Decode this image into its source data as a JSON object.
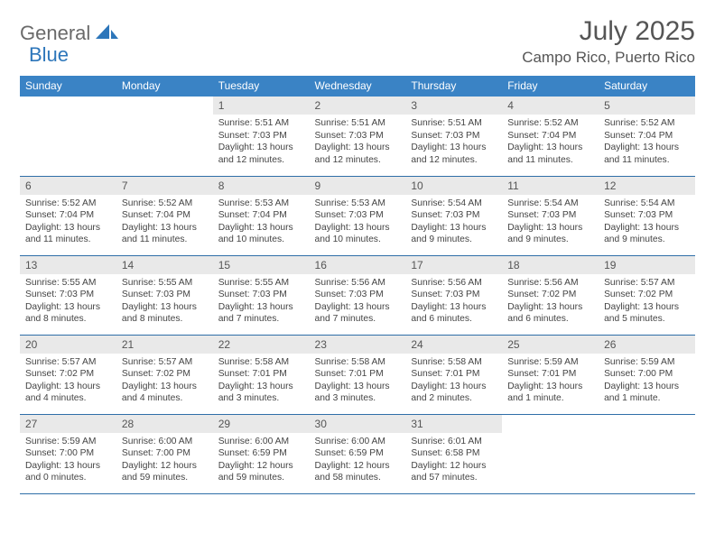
{
  "brand": {
    "part1": "General",
    "part2": "Blue"
  },
  "title": "July 2025",
  "location": "Campo Rico, Puerto Rico",
  "colors": {
    "header_bg": "#3a83c5",
    "header_text": "#ffffff",
    "daynum_bg": "#e9e9e9",
    "rule": "#2f6fa8",
    "brand_gray": "#6a6a6a",
    "brand_blue": "#2d76ba"
  },
  "weekdays": [
    "Sunday",
    "Monday",
    "Tuesday",
    "Wednesday",
    "Thursday",
    "Friday",
    "Saturday"
  ],
  "weeks": [
    [
      null,
      null,
      {
        "n": "1",
        "sr": "5:51 AM",
        "ss": "7:03 PM",
        "dl": "13 hours and 12 minutes."
      },
      {
        "n": "2",
        "sr": "5:51 AM",
        "ss": "7:03 PM",
        "dl": "13 hours and 12 minutes."
      },
      {
        "n": "3",
        "sr": "5:51 AM",
        "ss": "7:03 PM",
        "dl": "13 hours and 12 minutes."
      },
      {
        "n": "4",
        "sr": "5:52 AM",
        "ss": "7:04 PM",
        "dl": "13 hours and 11 minutes."
      },
      {
        "n": "5",
        "sr": "5:52 AM",
        "ss": "7:04 PM",
        "dl": "13 hours and 11 minutes."
      }
    ],
    [
      {
        "n": "6",
        "sr": "5:52 AM",
        "ss": "7:04 PM",
        "dl": "13 hours and 11 minutes."
      },
      {
        "n": "7",
        "sr": "5:52 AM",
        "ss": "7:04 PM",
        "dl": "13 hours and 11 minutes."
      },
      {
        "n": "8",
        "sr": "5:53 AM",
        "ss": "7:04 PM",
        "dl": "13 hours and 10 minutes."
      },
      {
        "n": "9",
        "sr": "5:53 AM",
        "ss": "7:03 PM",
        "dl": "13 hours and 10 minutes."
      },
      {
        "n": "10",
        "sr": "5:54 AM",
        "ss": "7:03 PM",
        "dl": "13 hours and 9 minutes."
      },
      {
        "n": "11",
        "sr": "5:54 AM",
        "ss": "7:03 PM",
        "dl": "13 hours and 9 minutes."
      },
      {
        "n": "12",
        "sr": "5:54 AM",
        "ss": "7:03 PM",
        "dl": "13 hours and 9 minutes."
      }
    ],
    [
      {
        "n": "13",
        "sr": "5:55 AM",
        "ss": "7:03 PM",
        "dl": "13 hours and 8 minutes."
      },
      {
        "n": "14",
        "sr": "5:55 AM",
        "ss": "7:03 PM",
        "dl": "13 hours and 8 minutes."
      },
      {
        "n": "15",
        "sr": "5:55 AM",
        "ss": "7:03 PM",
        "dl": "13 hours and 7 minutes."
      },
      {
        "n": "16",
        "sr": "5:56 AM",
        "ss": "7:03 PM",
        "dl": "13 hours and 7 minutes."
      },
      {
        "n": "17",
        "sr": "5:56 AM",
        "ss": "7:03 PM",
        "dl": "13 hours and 6 minutes."
      },
      {
        "n": "18",
        "sr": "5:56 AM",
        "ss": "7:02 PM",
        "dl": "13 hours and 6 minutes."
      },
      {
        "n": "19",
        "sr": "5:57 AM",
        "ss": "7:02 PM",
        "dl": "13 hours and 5 minutes."
      }
    ],
    [
      {
        "n": "20",
        "sr": "5:57 AM",
        "ss": "7:02 PM",
        "dl": "13 hours and 4 minutes."
      },
      {
        "n": "21",
        "sr": "5:57 AM",
        "ss": "7:02 PM",
        "dl": "13 hours and 4 minutes."
      },
      {
        "n": "22",
        "sr": "5:58 AM",
        "ss": "7:01 PM",
        "dl": "13 hours and 3 minutes."
      },
      {
        "n": "23",
        "sr": "5:58 AM",
        "ss": "7:01 PM",
        "dl": "13 hours and 3 minutes."
      },
      {
        "n": "24",
        "sr": "5:58 AM",
        "ss": "7:01 PM",
        "dl": "13 hours and 2 minutes."
      },
      {
        "n": "25",
        "sr": "5:59 AM",
        "ss": "7:01 PM",
        "dl": "13 hours and 1 minute."
      },
      {
        "n": "26",
        "sr": "5:59 AM",
        "ss": "7:00 PM",
        "dl": "13 hours and 1 minute."
      }
    ],
    [
      {
        "n": "27",
        "sr": "5:59 AM",
        "ss": "7:00 PM",
        "dl": "13 hours and 0 minutes."
      },
      {
        "n": "28",
        "sr": "6:00 AM",
        "ss": "7:00 PM",
        "dl": "12 hours and 59 minutes."
      },
      {
        "n": "29",
        "sr": "6:00 AM",
        "ss": "6:59 PM",
        "dl": "12 hours and 59 minutes."
      },
      {
        "n": "30",
        "sr": "6:00 AM",
        "ss": "6:59 PM",
        "dl": "12 hours and 58 minutes."
      },
      {
        "n": "31",
        "sr": "6:01 AM",
        "ss": "6:58 PM",
        "dl": "12 hours and 57 minutes."
      },
      null,
      null
    ]
  ],
  "labels": {
    "sunrise": "Sunrise:",
    "sunset": "Sunset:",
    "daylight": "Daylight:"
  }
}
